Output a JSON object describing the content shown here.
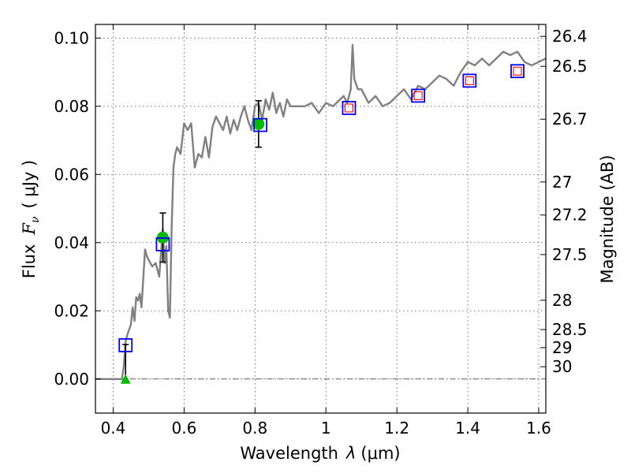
{
  "chart_data": {
    "type": "scatter",
    "xlabel": "Wavelength",
    "xlabel_symbol": "λ",
    "xlabel_unit": "(μm)",
    "ylabel_prefix": "Flux",
    "ylabel_symbol": "F",
    "ylabel_sub": "ν",
    "ylabel_unit": "( μJy )",
    "y2label": "Magnitude (AB)",
    "xlim": [
      0.35,
      1.62
    ],
    "ylim": [
      -0.01,
      0.104
    ],
    "xticks": [
      0.4,
      0.6,
      0.8,
      1.0,
      1.2,
      1.4,
      1.6
    ],
    "xtick_labels": [
      "0.4",
      "0.6",
      "0.8",
      "1",
      "1.2",
      "1.4",
      "1.6"
    ],
    "yticks": [
      0.0,
      0.02,
      0.04,
      0.06,
      0.08,
      0.1
    ],
    "ytick_labels": [
      "0.00",
      "0.02",
      "0.04",
      "0.06",
      "0.08",
      "0.10"
    ],
    "y2ticks": [
      {
        "label": "26.4",
        "flux": 0.1005
      },
      {
        "label": "26.5",
        "flux": 0.0917
      },
      {
        "label": "26.7",
        "flux": 0.0762
      },
      {
        "label": "27",
        "flux": 0.0578
      },
      {
        "label": "27.2",
        "flux": 0.0481
      },
      {
        "label": "27.5",
        "flux": 0.0365
      },
      {
        "label": "28",
        "flux": 0.0231
      },
      {
        "label": "28.5",
        "flux": 0.0145
      },
      {
        "label": "29",
        "flux": 0.0092
      },
      {
        "label": "30",
        "flux": 0.0036
      }
    ],
    "grid": true,
    "model_color": "#808080",
    "model_spectrum": {
      "x": [
        0.35,
        0.415,
        0.425,
        0.43,
        0.435,
        0.44,
        0.45,
        0.455,
        0.46,
        0.465,
        0.47,
        0.475,
        0.48,
        0.49,
        0.495,
        0.5,
        0.51,
        0.52,
        0.53,
        0.54,
        0.545,
        0.55,
        0.555,
        0.56,
        0.565,
        0.57,
        0.575,
        0.58,
        0.59,
        0.6,
        0.61,
        0.62,
        0.63,
        0.64,
        0.65,
        0.66,
        0.67,
        0.68,
        0.69,
        0.7,
        0.71,
        0.72,
        0.73,
        0.74,
        0.75,
        0.76,
        0.77,
        0.78,
        0.79,
        0.8,
        0.81,
        0.82,
        0.83,
        0.84,
        0.85,
        0.86,
        0.87,
        0.88,
        0.89,
        0.9,
        0.92,
        0.94,
        0.96,
        0.98,
        1.0,
        1.02,
        1.04,
        1.05,
        1.06,
        1.07,
        1.075,
        1.08,
        1.09,
        1.1,
        1.12,
        1.14,
        1.16,
        1.18,
        1.2,
        1.22,
        1.24,
        1.26,
        1.28,
        1.3,
        1.32,
        1.34,
        1.36,
        1.38,
        1.4,
        1.42,
        1.44,
        1.46,
        1.48,
        1.5,
        1.52,
        1.54,
        1.56,
        1.58,
        1.6,
        1.62
      ],
      "y": [
        0.0,
        0.0,
        0.0,
        0.004,
        0.011,
        0.013,
        0.016,
        0.021,
        0.017,
        0.024,
        0.023,
        0.025,
        0.021,
        0.038,
        0.036,
        0.035,
        0.033,
        0.034,
        0.03,
        0.044,
        0.034,
        0.039,
        0.02,
        0.018,
        0.045,
        0.062,
        0.066,
        0.068,
        0.066,
        0.075,
        0.073,
        0.075,
        0.062,
        0.066,
        0.065,
        0.071,
        0.065,
        0.074,
        0.077,
        0.075,
        0.073,
        0.077,
        0.072,
        0.076,
        0.073,
        0.077,
        0.08,
        0.076,
        0.073,
        0.08,
        0.081,
        0.076,
        0.082,
        0.079,
        0.084,
        0.078,
        0.081,
        0.077,
        0.082,
        0.08,
        0.08,
        0.08,
        0.081,
        0.078,
        0.081,
        0.08,
        0.082,
        0.083,
        0.081,
        0.085,
        0.098,
        0.088,
        0.085,
        0.085,
        0.081,
        0.083,
        0.08,
        0.081,
        0.083,
        0.085,
        0.082,
        0.086,
        0.085,
        0.087,
        0.089,
        0.088,
        0.086,
        0.09,
        0.093,
        0.092,
        0.094,
        0.092,
        0.094,
        0.096,
        0.095,
        0.096,
        0.093,
        0.092,
        0.093,
        0.094
      ]
    },
    "series": [
      {
        "name": "observed_photometry",
        "marker": "circle",
        "color": "#00bb00",
        "x": [
          0.54,
          0.81
        ],
        "y": [
          0.0415,
          0.0748
        ],
        "yerr": [
          0.0072,
          0.0068
        ]
      },
      {
        "name": "upper_limit",
        "marker": "triangle",
        "color": "#00bb00",
        "x": [
          0.435
        ],
        "y": [
          0.0
        ],
        "yerr_up": [
          0.0101
        ]
      },
      {
        "name": "model_photometry",
        "marker": "square",
        "color": "#0000ff",
        "x": [
          0.435,
          0.54,
          0.815,
          1.065,
          1.26,
          1.405,
          1.54
        ],
        "y": [
          0.0099,
          0.0395,
          0.0745,
          0.0795,
          0.0831,
          0.0875,
          0.0903
        ]
      },
      {
        "name": "model_photometry_nir",
        "marker": "small-square",
        "color": "#ff0000",
        "x": [
          1.065,
          1.26,
          1.405,
          1.54
        ],
        "y": [
          0.0795,
          0.0831,
          0.0875,
          0.0903
        ]
      }
    ]
  }
}
